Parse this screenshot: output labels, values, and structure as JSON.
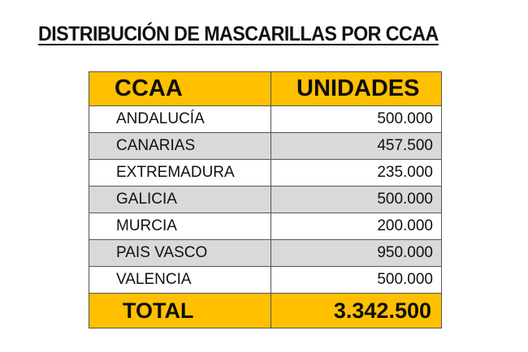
{
  "title": "DISTRIBUCIÓN DE MASCARILLAS POR CCAA",
  "table": {
    "headers": [
      "CCAA",
      "UNIDADES"
    ],
    "rows": [
      {
        "ccaa": "ANDALUCÍA",
        "unidades": "500.000"
      },
      {
        "ccaa": "CANARIAS",
        "unidades": "457.500"
      },
      {
        "ccaa": "EXTREMADURA",
        "unidades": "235.000"
      },
      {
        "ccaa": "GALICIA",
        "unidades": "500.000"
      },
      {
        "ccaa": "MURCIA",
        "unidades": "200.000"
      },
      {
        "ccaa": "PAIS VASCO",
        "unidades": "950.000"
      },
      {
        "ccaa": "VALENCIA",
        "unidades": "500.000"
      }
    ],
    "total": {
      "label": "TOTAL",
      "value": "3.342.500"
    }
  },
  "colors": {
    "header_fill": "#ffc000",
    "alt_row_fill": "#d9d9d9",
    "border": "#555555"
  }
}
